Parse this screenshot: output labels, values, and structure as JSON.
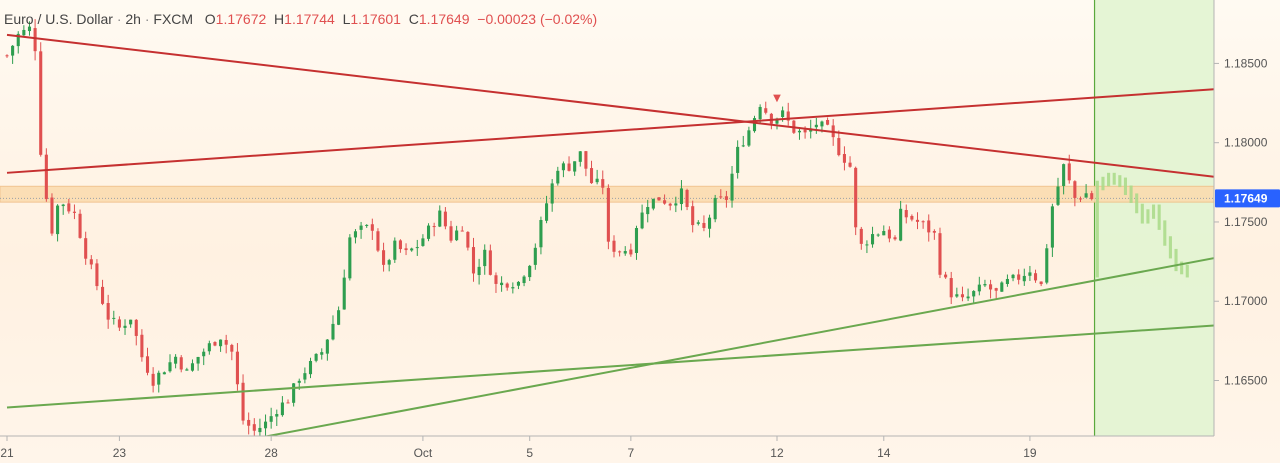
{
  "header": {
    "symbol": "Euro / U.S. Dollar",
    "interval": "2h",
    "source": "FXCM",
    "o_label": "O",
    "o_value": "1.17672",
    "h_label": "H",
    "h_value": "1.17744",
    "l_label": "L",
    "l_value": "1.17601",
    "c_label": "C",
    "c_value": "1.17649",
    "change": "−0.00023 (−0.02%)"
  },
  "colors": {
    "up": "#2e9e4f",
    "down": "#e05050",
    "resistance": "#c53030",
    "support": "#6aa84f",
    "zone": "#fbdcb0",
    "forecast_area": "#e2f4d2",
    "forecast_bars": "#a9d987",
    "price_label_bg": "#2962ff"
  },
  "chart_data": {
    "type": "candlestick",
    "symbol": "Euro / U.S. Dollar",
    "interval": "2h",
    "ylim": [
      1.1615,
      1.189
    ],
    "yticks": [
      1.165,
      1.17,
      1.175,
      1.18,
      1.185
    ],
    "ytick_labels": [
      "1.16500",
      "1.17000",
      "1.17500",
      "1.18000",
      "1.18500"
    ],
    "x_range_bars": [
      0,
      216
    ],
    "xticks": [
      {
        "bar": 0,
        "label": "21"
      },
      {
        "bar": 20,
        "label": "23"
      },
      {
        "bar": 47,
        "label": "28"
      },
      {
        "bar": 74,
        "label": "Oct"
      },
      {
        "bar": 93,
        "label": "5"
      },
      {
        "bar": 111,
        "label": "7"
      },
      {
        "bar": 137,
        "label": "12"
      },
      {
        "bar": 156,
        "label": "14"
      },
      {
        "bar": 182,
        "label": "19"
      }
    ],
    "last_price": "1.17649",
    "last_bar": 193,
    "anchors": [
      [
        0,
        1.1855
      ],
      [
        2,
        1.1868
      ],
      [
        4,
        1.1872
      ],
      [
        5,
        1.186
      ],
      [
        6,
        1.1795
      ],
      [
        7,
        1.1765
      ],
      [
        8,
        1.1745
      ],
      [
        9,
        1.176
      ],
      [
        10,
        1.1762
      ],
      [
        12,
        1.1755
      ],
      [
        14,
        1.173
      ],
      [
        16,
        1.171
      ],
      [
        18,
        1.169
      ],
      [
        20,
        1.1683
      ],
      [
        22,
        1.169
      ],
      [
        24,
        1.1665
      ],
      [
        26,
        1.165
      ],
      [
        30,
        1.1665
      ],
      [
        32,
        1.1655
      ],
      [
        34,
        1.1665
      ],
      [
        36,
        1.1672
      ],
      [
        38,
        1.1678
      ],
      [
        40,
        1.1668
      ],
      [
        42,
        1.1625
      ],
      [
        44,
        1.1618
      ],
      [
        46,
        1.1623
      ],
      [
        48,
        1.1632
      ],
      [
        50,
        1.1638
      ],
      [
        52,
        1.1652
      ],
      [
        56,
        1.1668
      ],
      [
        59,
        1.1695
      ],
      [
        61,
        1.174
      ],
      [
        63,
        1.1745
      ],
      [
        65,
        1.1747
      ],
      [
        67,
        1.172
      ],
      [
        69,
        1.1735
      ],
      [
        71,
        1.173
      ],
      [
        73,
        1.1735
      ],
      [
        75,
        1.1745
      ],
      [
        77,
        1.1755
      ],
      [
        79,
        1.174
      ],
      [
        81,
        1.1748
      ],
      [
        83,
        1.1718
      ],
      [
        85,
        1.173
      ],
      [
        87,
        1.171
      ],
      [
        89,
        1.1712
      ],
      [
        91,
        1.1712
      ],
      [
        93,
        1.1725
      ],
      [
        94,
        1.1735
      ],
      [
        96,
        1.1762
      ],
      [
        98,
        1.1785
      ],
      [
        100,
        1.1785
      ],
      [
        102,
        1.1793
      ],
      [
        104,
        1.1775
      ],
      [
        106,
        1.1773
      ],
      [
        107,
        1.1735
      ],
      [
        109,
        1.1732
      ],
      [
        111,
        1.1733
      ],
      [
        112,
        1.1748
      ],
      [
        114,
        1.1762
      ],
      [
        116,
        1.1765
      ],
      [
        118,
        1.1762
      ],
      [
        120,
        1.1768
      ],
      [
        122,
        1.1748
      ],
      [
        124,
        1.1745
      ],
      [
        126,
        1.1762
      ],
      [
        128,
        1.1765
      ],
      [
        130,
        1.1795
      ],
      [
        132,
        1.1808
      ],
      [
        134,
        1.1825
      ],
      [
        136,
        1.1815
      ],
      [
        138,
        1.1818
      ],
      [
        140,
        1.1808
      ],
      [
        142,
        1.1805
      ],
      [
        144,
        1.1812
      ],
      [
        146,
        1.1808
      ],
      [
        148,
        1.1795
      ],
      [
        150,
        1.1785
      ],
      [
        151,
        1.1745
      ],
      [
        152,
        1.1735
      ],
      [
        154,
        1.1742
      ],
      [
        156,
        1.1745
      ],
      [
        158,
        1.1738
      ],
      [
        159,
        1.1755
      ],
      [
        161,
        1.1752
      ],
      [
        163,
        1.1748
      ],
      [
        165,
        1.1742
      ],
      [
        166,
        1.172
      ],
      [
        168,
        1.1705
      ],
      [
        170,
        1.17
      ],
      [
        172,
        1.1705
      ],
      [
        174,
        1.171
      ],
      [
        176,
        1.1705
      ],
      [
        178,
        1.1712
      ],
      [
        180,
        1.1715
      ],
      [
        182,
        1.172
      ],
      [
        184,
        1.171
      ],
      [
        185,
        1.1735
      ],
      [
        186,
        1.176
      ],
      [
        188,
        1.1785
      ],
      [
        190,
        1.1765
      ],
      [
        192,
        1.1768
      ],
      [
        193,
        1.1765
      ]
    ],
    "forecast_anchors": [
      [
        194,
        1.1773
      ],
      [
        196,
        1.1778
      ],
      [
        198,
        1.1775
      ],
      [
        200,
        1.1765
      ],
      [
        202,
        1.1752
      ],
      [
        204,
        1.1758
      ],
      [
        206,
        1.1738
      ],
      [
        208,
        1.1722
      ],
      [
        210,
        1.1718
      ]
    ],
    "forecast_start_bar": 194,
    "resistance_zone": [
      1.17625,
      1.17725
    ],
    "trend_lines": [
      {
        "kind": "resistance",
        "from": [
          0,
          1.1868
        ],
        "to": [
          216,
          1.1778
        ]
      },
      {
        "kind": "resistance",
        "from": [
          0,
          1.1781
        ],
        "to": [
          216,
          1.1834
        ]
      },
      {
        "kind": "support",
        "from": [
          0,
          1.1633
        ],
        "to": [
          216,
          1.1685
        ]
      },
      {
        "kind": "support",
        "from": [
          36,
          1.1608
        ],
        "to": [
          216,
          1.1728
        ]
      }
    ],
    "marker": {
      "bar": 137,
      "price": 1.1825,
      "glyph": "▼"
    },
    "grid": false
  }
}
